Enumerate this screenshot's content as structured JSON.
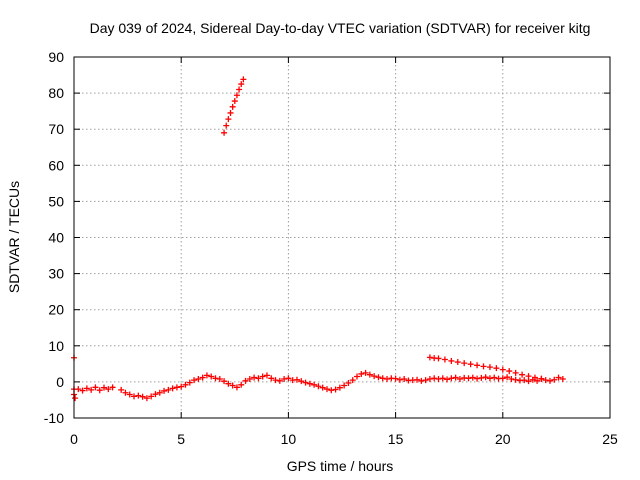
{
  "chart_data": {
    "type": "scatter",
    "title": "Day 039 of 2024, Sidereal Day-to-day VTEC variation (SDTVAR) for receiver kitg",
    "xlabel": "GPS time / hours",
    "ylabel": "SDTVAR / TECUs",
    "xlim": [
      0,
      25
    ],
    "ylim": [
      -10,
      90
    ],
    "xticks": [
      0,
      5,
      10,
      15,
      20,
      25
    ],
    "yticks": [
      -10,
      0,
      10,
      20,
      30,
      40,
      50,
      60,
      70,
      80,
      90
    ],
    "grid": true,
    "marker": "+",
    "color": "#ff0000",
    "series": [
      {
        "name": "kitg-main",
        "points": [
          [
            0.0,
            6.7
          ],
          [
            0.0,
            -2.0
          ],
          [
            0.0,
            -3.5
          ],
          [
            0.05,
            -4.5
          ],
          [
            0.2,
            -2.0
          ],
          [
            0.4,
            -2.4
          ],
          [
            0.6,
            -1.8
          ],
          [
            0.8,
            -2.2
          ],
          [
            1.0,
            -1.5
          ],
          [
            1.2,
            -2.3
          ],
          [
            1.4,
            -1.6
          ],
          [
            1.6,
            -2.0
          ],
          [
            1.8,
            -1.5
          ],
          [
            2.2,
            -2.2
          ],
          [
            2.4,
            -3.0
          ],
          [
            2.6,
            -3.5
          ],
          [
            2.8,
            -4.0
          ],
          [
            3.0,
            -3.8
          ],
          [
            3.2,
            -4.1
          ],
          [
            3.4,
            -4.5
          ],
          [
            3.6,
            -4.0
          ],
          [
            3.8,
            -3.4
          ],
          [
            4.0,
            -3.0
          ],
          [
            4.2,
            -2.5
          ],
          [
            4.4,
            -2.2
          ],
          [
            4.6,
            -1.8
          ],
          [
            4.8,
            -1.5
          ],
          [
            5.0,
            -1.3
          ],
          [
            5.2,
            -0.8
          ],
          [
            5.4,
            -0.2
          ],
          [
            5.6,
            0.5
          ],
          [
            5.8,
            0.8
          ],
          [
            6.0,
            1.2
          ],
          [
            6.2,
            1.8
          ],
          [
            6.4,
            1.5
          ],
          [
            6.6,
            1.0
          ],
          [
            6.8,
            0.8
          ],
          [
            7.0,
            0.2
          ],
          [
            7.2,
            -0.5
          ],
          [
            7.4,
            -1.0
          ],
          [
            7.6,
            -1.5
          ],
          [
            7.8,
            -0.8
          ],
          [
            8.0,
            0.3
          ],
          [
            8.2,
            0.8
          ],
          [
            8.4,
            1.2
          ],
          [
            8.6,
            1.0
          ],
          [
            8.8,
            1.5
          ],
          [
            9.0,
            1.8
          ],
          [
            9.2,
            1.0
          ],
          [
            9.4,
            0.5
          ],
          [
            9.6,
            0.3
          ],
          [
            9.8,
            0.8
          ],
          [
            10.0,
            1.0
          ],
          [
            10.2,
            0.5
          ],
          [
            10.4,
            0.6
          ],
          [
            10.6,
            0.2
          ],
          [
            10.8,
            -0.2
          ],
          [
            11.0,
            -0.5
          ],
          [
            11.2,
            -0.8
          ],
          [
            11.4,
            -1.2
          ],
          [
            11.6,
            -1.6
          ],
          [
            11.8,
            -2.0
          ],
          [
            12.0,
            -2.3
          ],
          [
            12.2,
            -2.1
          ],
          [
            12.4,
            -1.6
          ],
          [
            12.6,
            -1.0
          ],
          [
            12.8,
            -0.3
          ],
          [
            13.0,
            0.5
          ],
          [
            13.2,
            1.5
          ],
          [
            13.4,
            2.2
          ],
          [
            13.6,
            2.5
          ],
          [
            13.8,
            2.0
          ],
          [
            14.0,
            1.6
          ],
          [
            14.2,
            1.3
          ],
          [
            14.4,
            1.0
          ],
          [
            14.6,
            0.8
          ],
          [
            14.8,
            1.0
          ],
          [
            15.0,
            0.9
          ],
          [
            15.2,
            0.6
          ],
          [
            15.4,
            0.8
          ],
          [
            15.6,
            0.4
          ],
          [
            15.8,
            0.5
          ],
          [
            16.0,
            0.6
          ],
          [
            16.2,
            0.3
          ],
          [
            16.4,
            0.5
          ],
          [
            16.6,
            0.8
          ],
          [
            16.8,
            1.0
          ],
          [
            17.0,
            0.8
          ],
          [
            17.2,
            1.0
          ],
          [
            17.4,
            0.7
          ],
          [
            17.6,
            1.0
          ],
          [
            17.8,
            1.2
          ],
          [
            18.0,
            0.8
          ],
          [
            18.2,
            1.1
          ],
          [
            18.4,
            1.0
          ],
          [
            18.6,
            1.2
          ],
          [
            18.8,
            0.9
          ],
          [
            19.0,
            1.1
          ],
          [
            19.2,
            1.3
          ],
          [
            19.4,
            1.0
          ],
          [
            19.6,
            1.2
          ],
          [
            19.8,
            0.9
          ],
          [
            20.0,
            1.0
          ],
          [
            20.2,
            1.3
          ],
          [
            20.4,
            0.8
          ],
          [
            20.6,
            0.6
          ],
          [
            20.8,
            0.4
          ],
          [
            21.0,
            0.5
          ],
          [
            21.2,
            0.2
          ],
          [
            21.4,
            0.6
          ],
          [
            21.6,
            0.3
          ],
          [
            21.8,
            0.8
          ],
          [
            22.0,
            0.5
          ],
          [
            22.2,
            0.3
          ],
          [
            22.4,
            0.6
          ],
          [
            22.6,
            1.2
          ],
          [
            22.8,
            0.8
          ],
          [
            16.6,
            6.8
          ],
          [
            16.8,
            6.6
          ],
          [
            17.0,
            6.5
          ],
          [
            17.3,
            6.2
          ],
          [
            17.6,
            5.8
          ],
          [
            17.9,
            5.5
          ],
          [
            18.2,
            5.2
          ],
          [
            18.5,
            4.9
          ],
          [
            18.8,
            4.6
          ],
          [
            19.1,
            4.3
          ],
          [
            19.4,
            4.1
          ],
          [
            19.7,
            3.8
          ],
          [
            20.0,
            3.4
          ],
          [
            20.3,
            3.0
          ],
          [
            20.6,
            2.5
          ],
          [
            20.9,
            2.0
          ],
          [
            21.2,
            1.6
          ],
          [
            21.5,
            1.2
          ],
          [
            21.8,
            0.9
          ]
        ]
      },
      {
        "name": "kitg-spike",
        "points": [
          [
            7.0,
            69.0
          ],
          [
            7.1,
            71.0
          ],
          [
            7.2,
            72.8
          ],
          [
            7.3,
            74.5
          ],
          [
            7.4,
            76.2
          ],
          [
            7.5,
            77.8
          ],
          [
            7.6,
            79.4
          ],
          [
            7.7,
            81.0
          ],
          [
            7.8,
            82.5
          ],
          [
            7.9,
            83.8
          ]
        ]
      }
    ]
  }
}
